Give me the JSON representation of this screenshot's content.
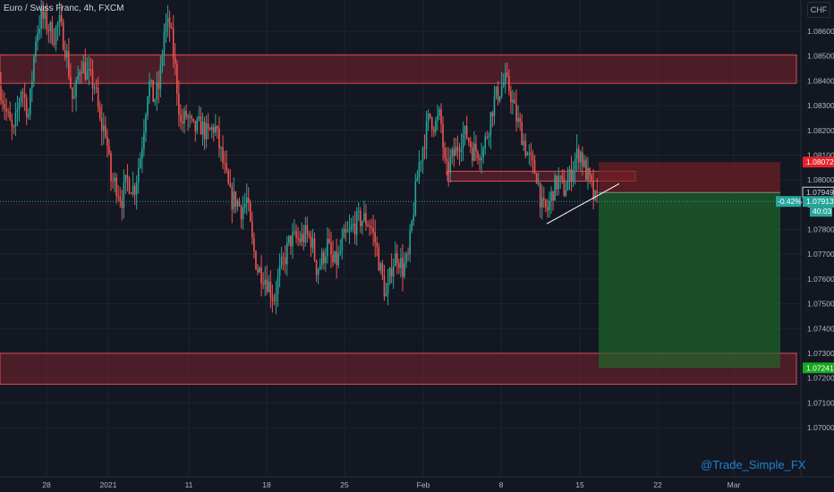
{
  "header": {
    "title": "Euro / Swiss Franc, 4h, FXCM",
    "currency": "CHF"
  },
  "watermark": "@Trade_Simple_FX",
  "colors": {
    "background": "#131722",
    "grid": "#1f2330",
    "up": "#26a69a",
    "down": "#ef5350",
    "zone": "#b22833",
    "loss": "#7a1e25",
    "profit": "#1f6b2a",
    "price": "#26a69a",
    "stop": "#e8202a",
    "target": "#18a81f",
    "trendline": "#ffffff"
  },
  "chart_data": {
    "type": "candlestick",
    "timeframe": "4h",
    "ylim": [
      1.07005,
      1.08775
    ],
    "y_ticks": [
      "1.08600",
      "1.08500",
      "1.08400",
      "1.08300",
      "1.08200",
      "1.08100",
      "1.08000",
      "1.07900",
      "1.07800",
      "1.07700",
      "1.07600",
      "1.07500",
      "1.07400",
      "1.07300",
      "1.07200",
      "1.07100",
      "1.07000"
    ],
    "x_ticks": [
      {
        "label": "28",
        "x": 52
      },
      {
        "label": "2021",
        "x": 121
      },
      {
        "label": "11",
        "x": 211
      },
      {
        "label": "18",
        "x": 298
      },
      {
        "label": "25",
        "x": 385
      },
      {
        "label": "Feb",
        "x": 473
      },
      {
        "label": "8",
        "x": 560
      },
      {
        "label": "15",
        "x": 648
      },
      {
        "label": "22",
        "x": 735
      },
      {
        "label": "Mar",
        "x": 820
      }
    ],
    "anchors": [
      [
        0,
        1.0838
      ],
      [
        8,
        1.0826
      ],
      [
        15,
        1.0818
      ],
      [
        24,
        1.0838
      ],
      [
        32,
        1.0826
      ],
      [
        40,
        1.0858
      ],
      [
        46,
        1.0866
      ],
      [
        52,
        1.0863
      ],
      [
        60,
        1.0858
      ],
      [
        66,
        1.0864
      ],
      [
        74,
        1.0852
      ],
      [
        82,
        1.083
      ],
      [
        90,
        1.0848
      ],
      [
        98,
        1.0842
      ],
      [
        106,
        1.0838
      ],
      [
        112,
        1.0822
      ],
      [
        118,
        1.082
      ],
      [
        124,
        1.08
      ],
      [
        130,
        1.0798
      ],
      [
        136,
        1.0792
      ],
      [
        142,
        1.08
      ],
      [
        150,
        1.0796
      ],
      [
        158,
        1.0812
      ],
      [
        166,
        1.084
      ],
      [
        172,
        1.0832
      ],
      [
        178,
        1.0838
      ],
      [
        184,
        1.0862
      ],
      [
        190,
        1.0862
      ],
      [
        196,
        1.0844
      ],
      [
        202,
        1.0822
      ],
      [
        208,
        1.0826
      ],
      [
        216,
        1.082
      ],
      [
        224,
        1.0822
      ],
      [
        232,
        1.0818
      ],
      [
        240,
        1.0822
      ],
      [
        246,
        1.0812
      ],
      [
        252,
        1.0802
      ],
      [
        258,
        1.0792
      ],
      [
        264,
        1.0792
      ],
      [
        270,
        1.0788
      ],
      [
        276,
        1.0792
      ],
      [
        282,
        1.0774
      ],
      [
        288,
        1.0764
      ],
      [
        294,
        1.0762
      ],
      [
        300,
        1.0758
      ],
      [
        306,
        1.0752
      ],
      [
        312,
        1.0762
      ],
      [
        318,
        1.0768
      ],
      [
        324,
        1.0776
      ],
      [
        330,
        1.0776
      ],
      [
        336,
        1.0776
      ],
      [
        342,
        1.0778
      ],
      [
        348,
        1.0776
      ],
      [
        354,
        1.0764
      ],
      [
        360,
        1.0768
      ],
      [
        366,
        1.0774
      ],
      [
        372,
        1.0766
      ],
      [
        378,
        1.0768
      ],
      [
        384,
        1.0776
      ],
      [
        390,
        1.0778
      ],
      [
        396,
        1.0782
      ],
      [
        402,
        1.0784
      ],
      [
        408,
        1.0784
      ],
      [
        414,
        1.0782
      ],
      [
        420,
        1.0774
      ],
      [
        426,
        1.0762
      ],
      [
        432,
        1.0752
      ],
      [
        438,
        1.0766
      ],
      [
        444,
        1.077
      ],
      [
        450,
        1.0764
      ],
      [
        456,
        1.0768
      ],
      [
        462,
        1.0788
      ],
      [
        468,
        1.0806
      ],
      [
        474,
        1.0816
      ],
      [
        480,
        1.0826
      ],
      [
        486,
        1.0822
      ],
      [
        492,
        1.0826
      ],
      [
        498,
        1.0802
      ],
      [
        504,
        1.0808
      ],
      [
        510,
        1.0812
      ],
      [
        516,
        1.0818
      ],
      [
        522,
        1.0818
      ],
      [
        528,
        1.0812
      ],
      [
        534,
        1.0812
      ],
      [
        540,
        1.0812
      ],
      [
        546,
        1.0822
      ],
      [
        552,
        1.0832
      ],
      [
        558,
        1.0836
      ],
      [
        564,
        1.084
      ],
      [
        570,
        1.0836
      ],
      [
        576,
        1.0826
      ],
      [
        582,
        1.082
      ],
      [
        588,
        1.0812
      ],
      [
        594,
        1.0806
      ],
      [
        600,
        1.0802
      ],
      [
        606,
        1.0788
      ],
      [
        612,
        1.0788
      ],
      [
        618,
        1.0796
      ],
      [
        624,
        1.08
      ],
      [
        630,
        1.0796
      ],
      [
        636,
        1.08
      ],
      [
        642,
        1.0808
      ],
      [
        648,
        1.0812
      ],
      [
        652,
        1.0806
      ],
      [
        656,
        1.0802
      ],
      [
        660,
        1.0798
      ],
      [
        664,
        1.0792
      ],
      [
        668,
        1.0791
      ]
    ],
    "zones": [
      {
        "y1": 1.08505,
        "y2": 1.0839,
        "x1": 0,
        "x2": 890
      },
      {
        "y1": 1.073,
        "y2": 1.07175,
        "x1": 0,
        "x2": 890
      },
      {
        "y1": 1.08035,
        "y2": 1.07995,
        "x1": 500,
        "x2": 710
      }
    ],
    "trendline": {
      "x1": 611,
      "y1": 1.07823,
      "x2": 692,
      "y2": 1.07985
    },
    "position": {
      "x1": 669,
      "x2": 872,
      "entry": 1.07949,
      "stop": 1.08072,
      "target": 1.07241
    },
    "price_labels": [
      {
        "text": "1.08072",
        "value": 1.08072,
        "color": "#e8202a"
      },
      {
        "text": "1.07949",
        "value": 1.07949,
        "color": "#d1d4dc",
        "outline": true
      },
      {
        "text": "1.07913",
        "value": 1.07913,
        "color": "#26a69a"
      },
      {
        "text": "1.07241",
        "value": 1.07241,
        "color": "#18a81f"
      }
    ],
    "change_label": "-0.42%",
    "countdown": "40:03",
    "last_price": 1.07913
  }
}
